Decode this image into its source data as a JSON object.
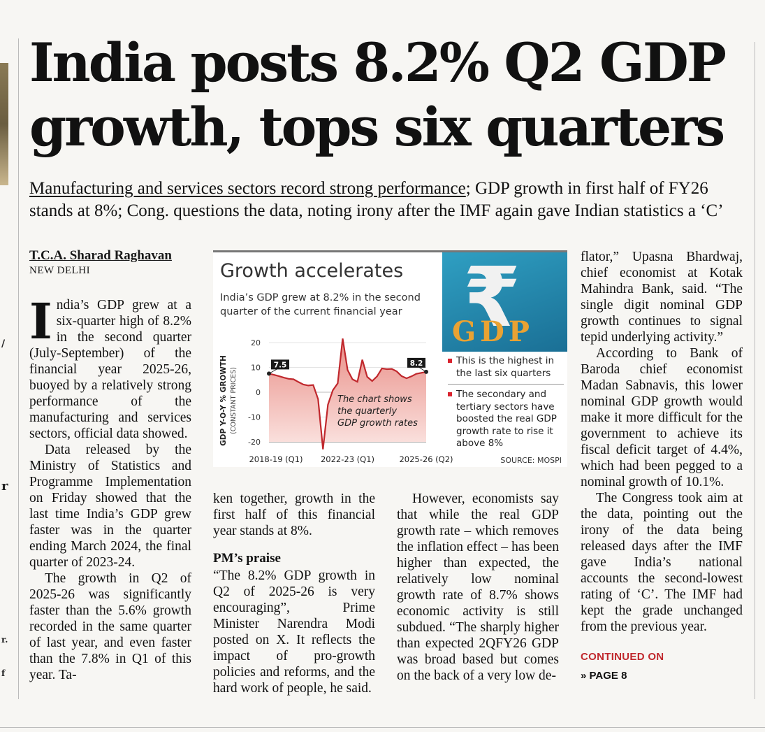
{
  "headline": "India posts 8.2% Q2 GDP growth, tops six quarters",
  "deck": {
    "underlined": "Manufacturing and services sectors record strong performance",
    "rest": "; GDP growth in first half of FY26 stands at 8%; Cong. questions the data, noting irony after the IMF again gave Indian statistics a ‘C’"
  },
  "byline": "T.C.A. Sharad Raghavan",
  "dateline": "NEW DELHI",
  "col1": {
    "dropcap": "I",
    "p1": "ndia’s GDP grew at a six-quarter high of 8.2% in the second quarter (July-September) of the financial year 2025-26, buoyed by a relatively strong performance of the manufacturing and services sectors, official data showed.",
    "p2": "Data released by the Ministry of Statistics and Programme Implementation on Friday showed that the last time India’s GDP grew faster was in the quarter ending March 2024, the final quarter of 2023-24.",
    "p3": "The growth in Q2 of 2025-26 was significantly faster than the 5.6% growth recorded in the same quarter of last year, and even faster than the 7.8% in Q1 of this year. Ta-"
  },
  "col2": {
    "p1": "ken together, growth in the first half of this financial year stands at 8%.",
    "subhead": "PM’s praise",
    "p2": "“The 8.2% GDP growth in Q2 of 2025-26 is very encouraging”, Prime Minister Narendra Modi posted on X. It reflects the impact of pro-growth policies and reforms, and the hard work of people, he said."
  },
  "col3": {
    "p1": "However, economists say that while the real GDP growth rate – which removes the inflation effect – has been higher than expected, the relatively low nominal growth rate of 8.7% shows economic activity is still subdued. “The sharply higher than expected 2QFY26 GDP was broad based but comes on the back of a very low de-"
  },
  "col4": {
    "p1": "flator,” Upasna Bhardwaj, chief economist at Kotak Mahindra Bank, said. “The single digit nominal GDP growth continues to signal tepid underlying activity.”",
    "p2": "According to Bank of Baroda chief economist Madan Sabnavis, this lower nominal GDP growth would make it more difficult for the government to achieve its fiscal deficit target of 4.4%, which had been pegged to a nominal growth of 10.1%.",
    "p3": "The Congress took aim at the data, pointing out the irony of the data being released days after the IMF gave India’s national accounts the second-lowest rating of ‘C’. The IMF had kept the grade unchanged from the previous year.",
    "continued": "CONTINUED ON",
    "page": "» PAGE 8"
  },
  "edge_fragments": [
    "/",
    "r",
    "r.",
    "f"
  ],
  "chart_data": {
    "type": "area",
    "title": "Growth accelerates",
    "subtitle": "India’s GDP grew at 8.2% in the second quarter of the current financial year",
    "ylabel": "GDP Y-O-Y % GROWTH",
    "ylabel2": "(CONSTANT PRICES)",
    "ylim": [
      -20,
      20
    ],
    "yticks": [
      "20",
      "10",
      "0",
      "-10",
      "-20"
    ],
    "xticks": [
      "2018-19 (Q1)",
      "2022-23 (Q1)",
      "2025-26 (Q2)"
    ],
    "series": [
      {
        "name": "GDP growth",
        "values": [
          7.5,
          7.0,
          6.5,
          5.9,
          5.4,
          5.2,
          4.1,
          3.1,
          2.7,
          2.9,
          -2.8,
          -23.0,
          -5.0,
          0.8,
          3.6,
          21.6,
          9.0,
          5.2,
          4.2,
          13.1,
          6.2,
          4.5,
          6.4,
          9.6,
          9.3,
          9.4,
          8.4,
          6.5,
          5.6,
          6.4,
          7.4,
          7.8,
          8.2
        ],
        "start_label": "7.5",
        "end_label": "8.2"
      }
    ],
    "callout": "The chart shows the quarterly GDP growth rates",
    "notes": [
      "This is the highest in the last six quarters",
      "The secondary and tertiary sectors have boosted the real GDP growth rate to rise it above 8%"
    ],
    "source": "SOURCE: MOSPI",
    "panel_symbol": "₹",
    "panel_text": "GDP",
    "colors": {
      "line": "#c0282d",
      "fill_top": "#e98e87",
      "fill_bottom": "#fbe5e2",
      "accent": "#d9232e"
    }
  }
}
